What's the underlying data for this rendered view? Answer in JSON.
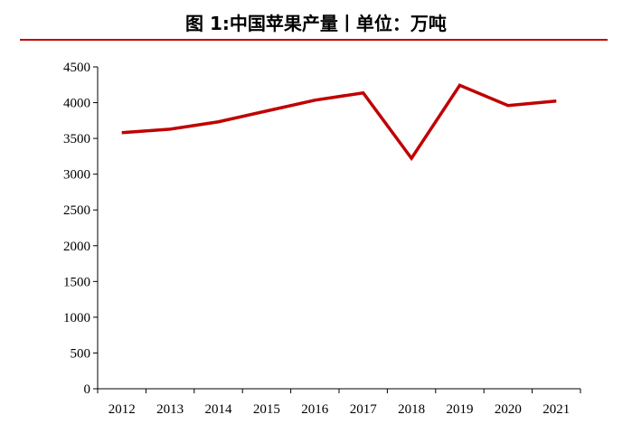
{
  "title": "图 1:中国苹果产量丨单位：万吨",
  "chart_data": {
    "type": "line",
    "title": "图 1:中国苹果产量丨单位：万吨",
    "categories": [
      "2012",
      "2013",
      "2014",
      "2015",
      "2016",
      "2017",
      "2018",
      "2019",
      "2020",
      "2021"
    ],
    "series": [
      {
        "values": [
          3580,
          3630,
          3732,
          3884,
          4035,
          4137,
          3222,
          4243,
          3960,
          4023
        ],
        "color": "#c00000"
      }
    ],
    "ylim": [
      0,
      4500
    ],
    "yticks": [
      0,
      500,
      1000,
      1500,
      2000,
      2500,
      3000,
      3500,
      4000,
      4500
    ],
    "grid": false,
    "legend": "none"
  }
}
